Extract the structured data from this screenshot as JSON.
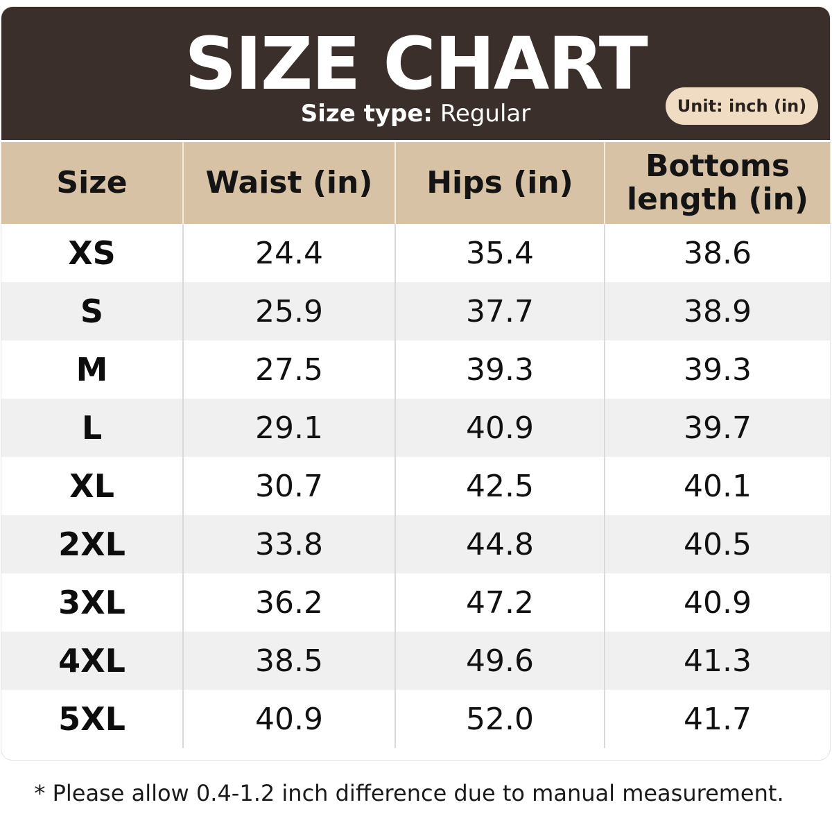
{
  "header": {
    "title": "SIZE CHART",
    "size_type_label": "Size type:",
    "size_type_value": "Regular",
    "unit_badge": "Unit: inch (in)"
  },
  "colors": {
    "header_bg": "#3a2f2a",
    "column_header_bg": "#d8c2a5",
    "badge_bg": "#efdcc3",
    "row_alt_bg": "#f0f0f0"
  },
  "table": {
    "columns": [
      "Size",
      "Waist (in)",
      "Hips (in)",
      "Bottoms length (in)"
    ],
    "rows": [
      [
        "XS",
        "24.4",
        "35.4",
        "38.6"
      ],
      [
        "S",
        "25.9",
        "37.7",
        "38.9"
      ],
      [
        "M",
        "27.5",
        "39.3",
        "39.3"
      ],
      [
        "L",
        "29.1",
        "40.9",
        "39.7"
      ],
      [
        "XL",
        "30.7",
        "42.5",
        "40.1"
      ],
      [
        "2XL",
        "33.8",
        "44.8",
        "40.5"
      ],
      [
        "3XL",
        "36.2",
        "47.2",
        "40.9"
      ],
      [
        "4XL",
        "38.5",
        "49.6",
        "41.3"
      ],
      [
        "5XL",
        "40.9",
        "52.0",
        "41.7"
      ]
    ]
  },
  "footnote": "* Please allow 0.4-1.2 inch difference due to manual measurement."
}
